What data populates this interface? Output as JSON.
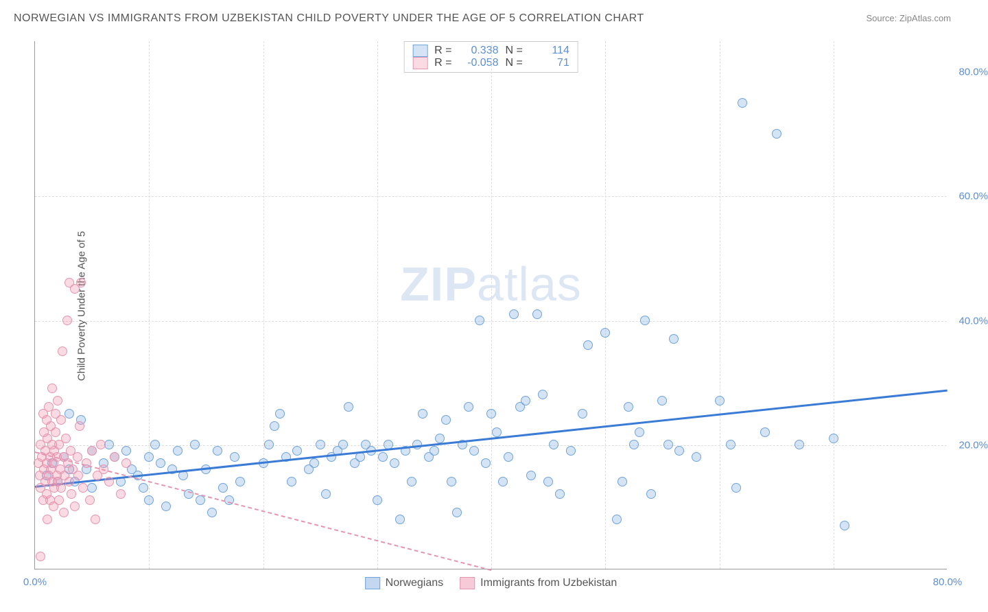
{
  "title": "NORWEGIAN VS IMMIGRANTS FROM UZBEKISTAN CHILD POVERTY UNDER THE AGE OF 5 CORRELATION CHART",
  "source": "Source: ZipAtlas.com",
  "ylabel": "Child Poverty Under the Age of 5",
  "watermark_bold": "ZIP",
  "watermark_light": "atlas",
  "chart": {
    "type": "scatter",
    "xlim": [
      0,
      80
    ],
    "ylim": [
      0,
      85
    ],
    "xticks": [
      {
        "v": 0,
        "l": "0.0%"
      },
      {
        "v": 80,
        "l": "80.0%"
      }
    ],
    "yticks": [
      {
        "v": 20,
        "l": "20.0%"
      },
      {
        "v": 40,
        "l": "40.0%"
      },
      {
        "v": 60,
        "l": "60.0%"
      },
      {
        "v": 80,
        "l": "80.0%"
      }
    ],
    "x_gridlines": [
      10,
      20,
      30,
      40,
      50,
      60,
      70
    ],
    "y_gridlines": [
      20,
      40,
      60
    ],
    "background_color": "#ffffff",
    "grid_color": "#dddddd",
    "axis_color": "#999999",
    "tick_color": "#5b8fd6",
    "marker_radius": 7,
    "series": [
      {
        "name": "Norwegians",
        "fill": "rgba(135,178,226,0.35)",
        "stroke": "#6fa3db",
        "trend_color": "#3a7bd5",
        "trend_width": 3,
        "trend_dash": "solid",
        "trend": {
          "x1": 0,
          "y1": 13.5,
          "x2": 80,
          "y2": 29
        },
        "R": "0.338",
        "N": "114",
        "points": [
          [
            1,
            15
          ],
          [
            1.5,
            17
          ],
          [
            2,
            14
          ],
          [
            2.5,
            18
          ],
          [
            3,
            16
          ],
          [
            3,
            25
          ],
          [
            3.5,
            14
          ],
          [
            4,
            24
          ],
          [
            4.5,
            16
          ],
          [
            5,
            19
          ],
          [
            5,
            13
          ],
          [
            6,
            17
          ],
          [
            6.5,
            20
          ],
          [
            7,
            18
          ],
          [
            7.5,
            14
          ],
          [
            8,
            19
          ],
          [
            8.5,
            16
          ],
          [
            9,
            15
          ],
          [
            9.5,
            13
          ],
          [
            10,
            11
          ],
          [
            10,
            18
          ],
          [
            10.5,
            20
          ],
          [
            11,
            17
          ],
          [
            11.5,
            10
          ],
          [
            12,
            16
          ],
          [
            12.5,
            19
          ],
          [
            13,
            15
          ],
          [
            13.5,
            12
          ],
          [
            14,
            20
          ],
          [
            14.5,
            11
          ],
          [
            15,
            16
          ],
          [
            15.5,
            9
          ],
          [
            16,
            19
          ],
          [
            16.5,
            13
          ],
          [
            17,
            11
          ],
          [
            17.5,
            18
          ],
          [
            18,
            14
          ],
          [
            20,
            17
          ],
          [
            20.5,
            20
          ],
          [
            21,
            23
          ],
          [
            21.5,
            25
          ],
          [
            22,
            18
          ],
          [
            22.5,
            14
          ],
          [
            23,
            19
          ],
          [
            24,
            16
          ],
          [
            24.5,
            17
          ],
          [
            25,
            20
          ],
          [
            25.5,
            12
          ],
          [
            26,
            18
          ],
          [
            26.5,
            19
          ],
          [
            27,
            20
          ],
          [
            27.5,
            26
          ],
          [
            28,
            17
          ],
          [
            28.5,
            18
          ],
          [
            29,
            20
          ],
          [
            29.5,
            19
          ],
          [
            30,
            11
          ],
          [
            30.5,
            18
          ],
          [
            31,
            20
          ],
          [
            31.5,
            17
          ],
          [
            32,
            8
          ],
          [
            32.5,
            19
          ],
          [
            33,
            14
          ],
          [
            33.5,
            20
          ],
          [
            34,
            25
          ],
          [
            34.5,
            18
          ],
          [
            35,
            19
          ],
          [
            35.5,
            21
          ],
          [
            36,
            24
          ],
          [
            36.5,
            14
          ],
          [
            37,
            9
          ],
          [
            37.5,
            20
          ],
          [
            38,
            26
          ],
          [
            38.5,
            19
          ],
          [
            39,
            40
          ],
          [
            39.5,
            17
          ],
          [
            40,
            25
          ],
          [
            40.5,
            22
          ],
          [
            41,
            14
          ],
          [
            41.5,
            18
          ],
          [
            42,
            41
          ],
          [
            42.5,
            26
          ],
          [
            43,
            27
          ],
          [
            43.5,
            15
          ],
          [
            44,
            41
          ],
          [
            44.5,
            28
          ],
          [
            45,
            14
          ],
          [
            45.5,
            20
          ],
          [
            46,
            12
          ],
          [
            47,
            19
          ],
          [
            48,
            25
          ],
          [
            48.5,
            36
          ],
          [
            50,
            38
          ],
          [
            51,
            8
          ],
          [
            51.5,
            14
          ],
          [
            52,
            26
          ],
          [
            52.5,
            20
          ],
          [
            53,
            22
          ],
          [
            53.5,
            40
          ],
          [
            54,
            12
          ],
          [
            55,
            27
          ],
          [
            55.5,
            20
          ],
          [
            56,
            37
          ],
          [
            56.5,
            19
          ],
          [
            58,
            18
          ],
          [
            60,
            27
          ],
          [
            61,
            20
          ],
          [
            61.5,
            13
          ],
          [
            62,
            75
          ],
          [
            64,
            22
          ],
          [
            65,
            70
          ],
          [
            67,
            20
          ],
          [
            70,
            21
          ],
          [
            71,
            7
          ]
        ]
      },
      {
        "name": "Immigrants from Uzbekistan",
        "fill": "rgba(240,150,175,0.35)",
        "stroke": "#e695b0",
        "trend_color": "#e695b0",
        "trend_width": 2,
        "trend_dash": "dashed",
        "trend": {
          "x1": 0,
          "y1": 19,
          "x2": 40,
          "y2": 0
        },
        "R": "-0.058",
        "N": "71",
        "points": [
          [
            0.3,
            17
          ],
          [
            0.4,
            15
          ],
          [
            0.5,
            20
          ],
          [
            0.5,
            13
          ],
          [
            0.6,
            18
          ],
          [
            0.7,
            25
          ],
          [
            0.7,
            11
          ],
          [
            0.8,
            16
          ],
          [
            0.8,
            22
          ],
          [
            0.9,
            14
          ],
          [
            0.9,
            19
          ],
          [
            1,
            24
          ],
          [
            1,
            12
          ],
          [
            1,
            17
          ],
          [
            1.1,
            21
          ],
          [
            1.1,
            8
          ],
          [
            1.2,
            15
          ],
          [
            1.2,
            26
          ],
          [
            1.3,
            18
          ],
          [
            1.3,
            11
          ],
          [
            1.4,
            23
          ],
          [
            1.4,
            16
          ],
          [
            1.5,
            14
          ],
          [
            1.5,
            20
          ],
          [
            1.5,
            29
          ],
          [
            1.6,
            17
          ],
          [
            1.6,
            10
          ],
          [
            1.7,
            19
          ],
          [
            1.7,
            13
          ],
          [
            1.8,
            22
          ],
          [
            1.8,
            25
          ],
          [
            1.9,
            15
          ],
          [
            1.9,
            18
          ],
          [
            2,
            27
          ],
          [
            2,
            14
          ],
          [
            2.1,
            20
          ],
          [
            2.1,
            11
          ],
          [
            2.2,
            16
          ],
          [
            2.3,
            24
          ],
          [
            2.3,
            13
          ],
          [
            2.4,
            35
          ],
          [
            2.5,
            18
          ],
          [
            2.5,
            9
          ],
          [
            2.6,
            15
          ],
          [
            2.7,
            21
          ],
          [
            2.8,
            40
          ],
          [
            2.9,
            17
          ],
          [
            3,
            14
          ],
          [
            3,
            46
          ],
          [
            3.1,
            19
          ],
          [
            3.2,
            12
          ],
          [
            3.3,
            16
          ],
          [
            3.5,
            45
          ],
          [
            3.5,
            10
          ],
          [
            3.7,
            18
          ],
          [
            3.8,
            15
          ],
          [
            3.9,
            23
          ],
          [
            4,
            46
          ],
          [
            4.2,
            13
          ],
          [
            4.5,
            17
          ],
          [
            4.8,
            11
          ],
          [
            5,
            19
          ],
          [
            5.3,
            8
          ],
          [
            5.5,
            15
          ],
          [
            5.8,
            20
          ],
          [
            6,
            16
          ],
          [
            6.5,
            14
          ],
          [
            7,
            18
          ],
          [
            7.5,
            12
          ],
          [
            8,
            17
          ],
          [
            0.5,
            2
          ]
        ]
      }
    ]
  },
  "legend_top": {
    "r_label": "R =",
    "n_label": "N ="
  },
  "legend_bottom": [
    {
      "label": "Norwegians",
      "fill": "rgba(135,178,226,0.5)",
      "stroke": "#6fa3db"
    },
    {
      "label": "Immigrants from Uzbekistan",
      "fill": "rgba(240,150,175,0.5)",
      "stroke": "#e695b0"
    }
  ]
}
